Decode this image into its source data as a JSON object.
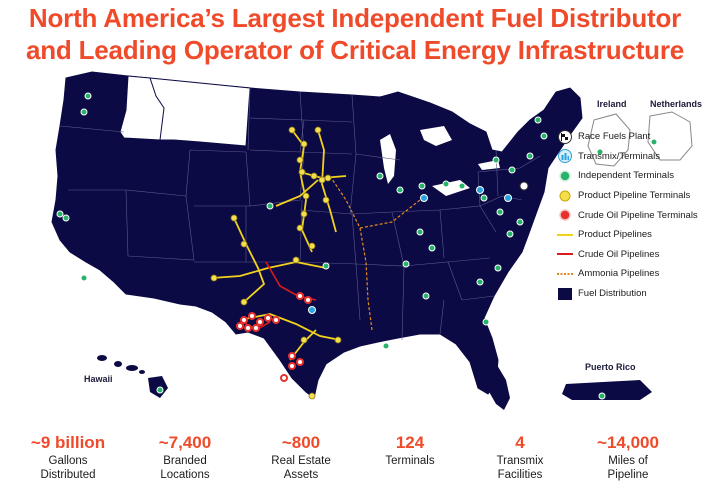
{
  "header": {
    "title_line1": "North America’s Largest Independent Fuel Distributor",
    "title_line2": "and Leading Operator of Critical Energy Infrastructure"
  },
  "map": {
    "insets": {
      "ireland": "Ireland",
      "netherlands": "Netherlands",
      "hawaii": "Hawaii",
      "puerto_rico": "Puerto Rico"
    },
    "colors": {
      "fuel_distribution": "#0c0a45",
      "product_pipeline": "#f2d21c",
      "crude_pipeline": "#d81b1b",
      "ammonia_pipeline": "#e08a1e",
      "independent_terminal": "#27b36a",
      "product_terminal": "#f5de4b",
      "crude_terminal": "#e5322c",
      "transmix": "#29a3dc"
    }
  },
  "legend": {
    "items": [
      {
        "label": "Race Fuels Plant",
        "icon": "checkered-flag-icon"
      },
      {
        "label": "Transmix/Terminals",
        "icon": "transmix-icon"
      },
      {
        "label": "Independent Terminals",
        "icon": "green-dot-icon"
      },
      {
        "label": "Product Pipeline Terminals",
        "icon": "yellow-dot-icon"
      },
      {
        "label": "Crude Oil Pipeline Terminals",
        "icon": "red-dot-icon"
      },
      {
        "label": "Product Pipelines",
        "icon": "yellow-line-icon"
      },
      {
        "label": "Crude Oil Pipelines",
        "icon": "red-line-icon"
      },
      {
        "label": "Ammonia Pipelines",
        "icon": "dashed-orange-line-icon"
      },
      {
        "label": "Fuel Distribution",
        "icon": "navy-square-icon"
      }
    ]
  },
  "stats": [
    {
      "value": "~9 billion",
      "line1": "Gallons",
      "line2": "Distributed"
    },
    {
      "value": "~7,400",
      "line1": "Branded",
      "line2": "Locations"
    },
    {
      "value": "~800",
      "line1": "Real Estate",
      "line2": "Assets"
    },
    {
      "value": "124",
      "line1": "Terminals",
      "line2": ""
    },
    {
      "value": "4",
      "line1": "Transmix",
      "line2": "Facilities"
    },
    {
      "value": "~14,000",
      "line1": "Miles of",
      "line2": "Pipeline"
    }
  ]
}
